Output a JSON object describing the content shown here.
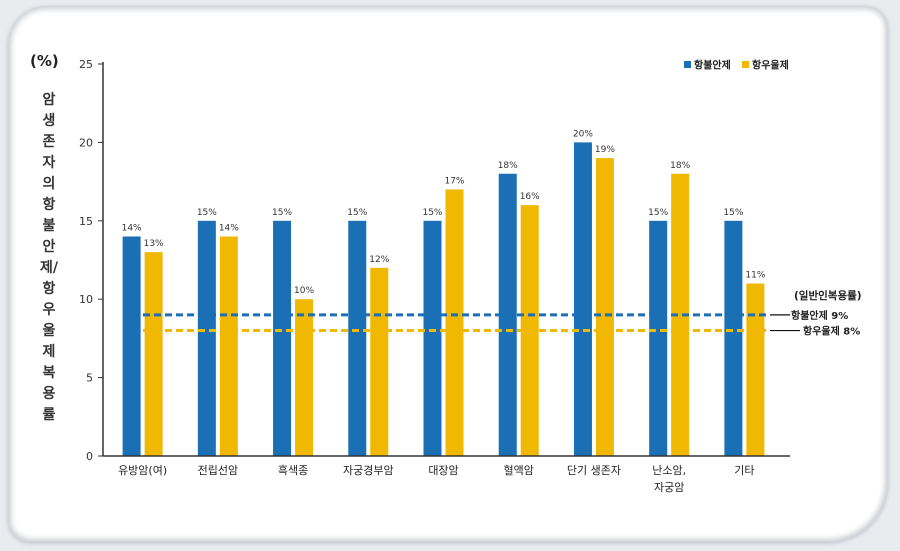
{
  "chart_data": {
    "type": "bar",
    "unit_label": "(%)",
    "ylabel": "암생존자의 항불안제/항우울제 복용률",
    "ylim": [
      0,
      25
    ],
    "yticks": [
      "0",
      "5",
      "10",
      "15",
      "20",
      "25"
    ],
    "categories": [
      "유방암(여)",
      "전립선암",
      "흑색종",
      "자궁경부암",
      "대장암",
      "혈액암",
      "단기 생존자",
      "난소암,\n자궁암",
      "기타"
    ],
    "series": [
      {
        "name": "항불안제",
        "color": "#1a6fb5",
        "values": [
          14,
          15,
          15,
          15,
          15,
          18,
          20,
          15,
          15
        ],
        "labels": [
          "14%",
          "15%",
          "15%",
          "15%",
          "15%",
          "18%",
          "20%",
          "15%",
          "15%"
        ]
      },
      {
        "name": "항우울제",
        "color": "#f0b800",
        "values": [
          13,
          14,
          10,
          12,
          17,
          16,
          19,
          18,
          11
        ],
        "labels": [
          "13%",
          "14%",
          "10%",
          "12%",
          "17%",
          "16%",
          "19%",
          "18%",
          "11%"
        ]
      }
    ],
    "reference_title": "(일반인복용률)",
    "reference_lines": [
      {
        "name": "항불안제",
        "label": "항불안제 9%",
        "value": 9,
        "color": "#1a6fb5"
      },
      {
        "name": "항우울제",
        "label": "항우울제 8%",
        "value": 8,
        "color": "#f0b800"
      }
    ],
    "legend_position": "top-right",
    "grid": false
  }
}
